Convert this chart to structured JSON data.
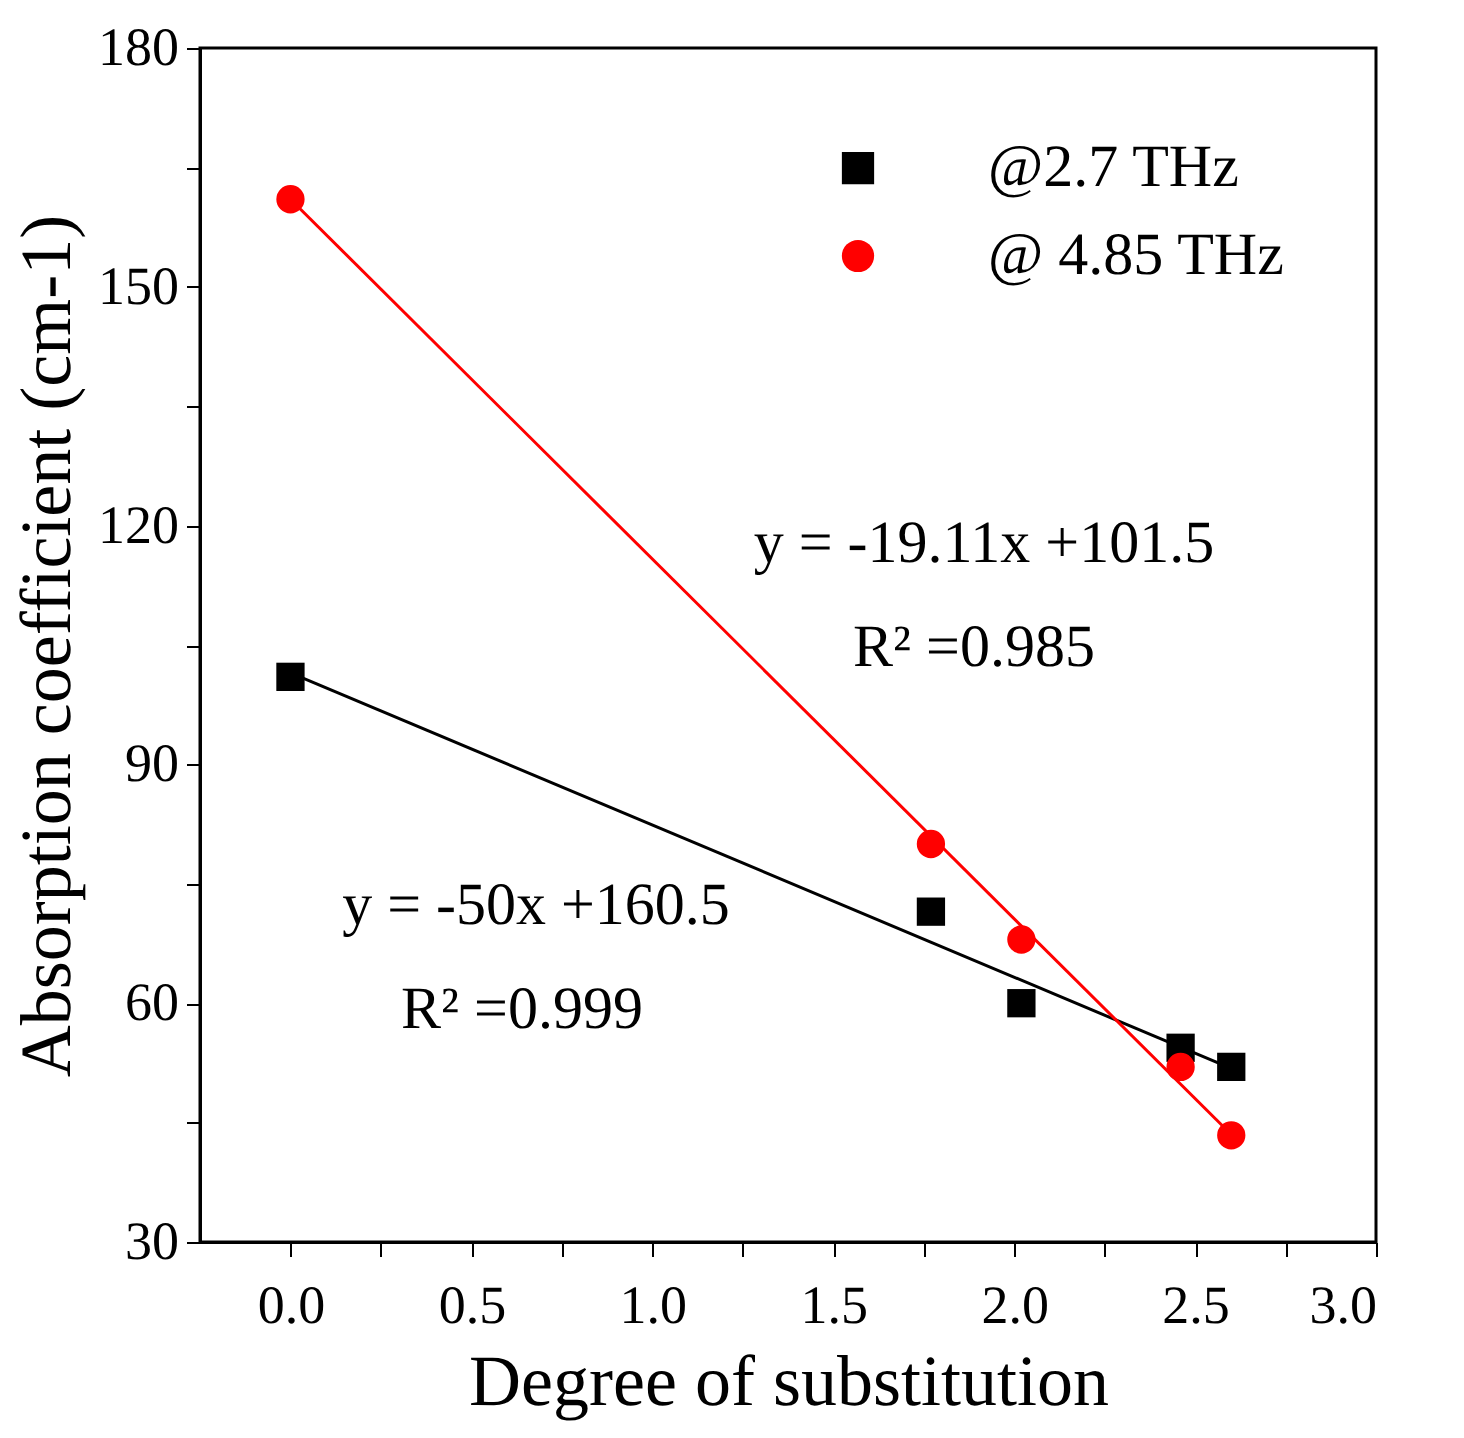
{
  "chart_data": {
    "type": "scatter",
    "xlabel": "Degree of substitution",
    "ylabel": "Absorption coefficient (cm-1)",
    "xlim": [
      -0.25,
      3.0
    ],
    "ylim": [
      30,
      180
    ],
    "xticks": [
      {
        "value": 0,
        "label": "0.0"
      },
      {
        "value": 0.25,
        "label": null
      },
      {
        "value": 0.5,
        "label": "0.5"
      },
      {
        "value": 0.75,
        "label": null
      },
      {
        "value": 1,
        "label": "1.0"
      },
      {
        "value": 1.25,
        "label": null
      },
      {
        "value": 1.5,
        "label": "1.5"
      },
      {
        "value": 1.75,
        "label": null
      },
      {
        "value": 2,
        "label": "2.0"
      },
      {
        "value": 2.25,
        "label": null
      },
      {
        "value": 2.5,
        "label": "2.5"
      },
      {
        "value": 2.75,
        "label": null
      },
      {
        "value": 3,
        "label": "3.0"
      }
    ],
    "yticks": [
      30,
      {
        "value": 45,
        "label": null
      },
      60,
      {
        "value": 75,
        "label": null
      },
      90,
      {
        "value": 105,
        "label": null
      },
      120,
      {
        "value": 135,
        "label": null
      },
      150,
      {
        "value": 165,
        "label": null
      },
      180
    ],
    "grid": false,
    "legend": "top right",
    "series": [
      {
        "name": "@2.7 THz",
        "color": "#000000",
        "marker": "square",
        "x": [
          0,
          1.77,
          2.02,
          2.46,
          2.6
        ],
        "values": [
          101,
          71.5,
          60,
          54.4,
          52
        ]
      },
      {
        "name": "@ 4.85 THz",
        "color": "#ff0000",
        "marker": "circle",
        "x": [
          0,
          1.77,
          2.02,
          2.46,
          2.6
        ],
        "values": [
          161,
          80,
          68,
          52,
          43.4
        ]
      },
      {
        "type": "line",
        "color": "#000000",
        "x": [
          0,
          2.6
        ],
        "values": [
          101.5,
          51.8
        ]
      },
      {
        "type": "line",
        "color": "#ff0000",
        "x": [
          0,
          2.6
        ],
        "values": [
          161,
          43.5
        ]
      }
    ],
    "annotations": [
      "y = -19.11x +101.5",
      "R² =0.985",
      "y = -50x +160.5",
      "R² =0.999"
    ]
  }
}
